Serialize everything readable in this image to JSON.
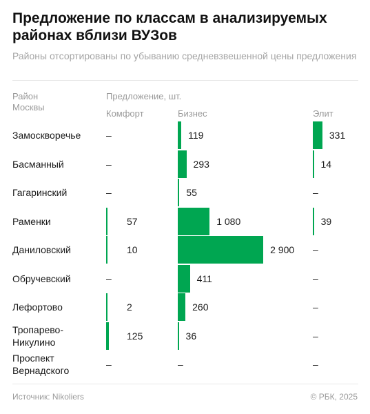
{
  "title": "Предложение по классам в анализируемых районах вблизи ВУЗов",
  "subtitle": "Районы отсортированы по убыванию средневзвешенной цены предложения",
  "headers": {
    "district": "Район Москвы",
    "offer": "Предложение, шт.",
    "comfort": "Комфорт",
    "business": "Бизнес",
    "elite": "Элит"
  },
  "dash": "–",
  "footer": {
    "source": "Источник: Nikoliers",
    "copyright": "© РБК, 2025"
  },
  "colors": {
    "bar": "#00a651"
  },
  "chart_data": {
    "type": "bar",
    "categories": [
      "Замоскворечье",
      "Басманный",
      "Гагаринский",
      "Раменки",
      "Даниловский",
      "Обручевский",
      "Лефортово",
      "Тропарево-Никулино",
      "Проспект Вернадского"
    ],
    "series": [
      {
        "name": "Комфорт",
        "values": [
          null,
          null,
          null,
          57,
          10,
          null,
          2,
          125,
          null
        ],
        "labels": [
          "",
          "",
          "",
          "57",
          "10",
          "",
          "2",
          "125",
          ""
        ]
      },
      {
        "name": "Бизнес",
        "values": [
          119,
          293,
          55,
          1080,
          2900,
          411,
          260,
          36,
          null
        ],
        "labels": [
          "119",
          "293",
          "55",
          "1 080",
          "2 900",
          "411",
          "260",
          "36",
          ""
        ]
      },
      {
        "name": "Элит",
        "values": [
          331,
          14,
          null,
          39,
          null,
          null,
          null,
          null,
          null
        ],
        "labels": [
          "331",
          "14",
          "",
          "39",
          "",
          "",
          "",
          "",
          ""
        ]
      }
    ]
  }
}
